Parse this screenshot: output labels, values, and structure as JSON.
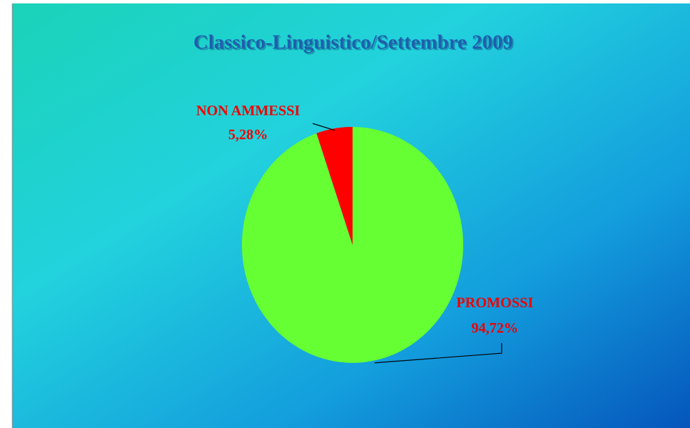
{
  "chart_data": {
    "type": "pie",
    "title": "Classico-Linguistico/Settembre 2009",
    "categories": [
      "PROMOSSI",
      "NON AMMESSI"
    ],
    "values": [
      94.72,
      5.28
    ],
    "value_labels": [
      "94,72%",
      "5,28%"
    ],
    "colors": [
      "#66ff33",
      "#ff0000"
    ]
  }
}
